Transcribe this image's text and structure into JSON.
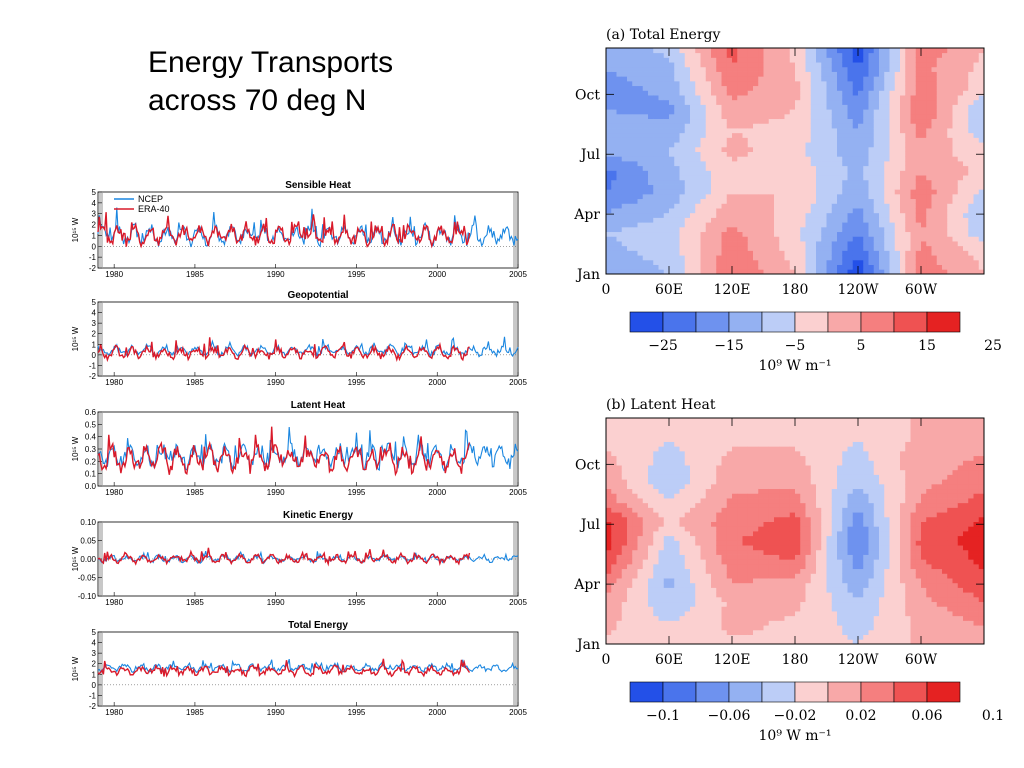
{
  "slide": {
    "title_line1": "Energy Transports",
    "title_line2": "across 70 deg N"
  },
  "colors": {
    "ncep": "#1a86e0",
    "era40": "#d91a2a",
    "neg_scale": [
      "#2350e8",
      "#4a74ec",
      "#6e92ef",
      "#94b1f2",
      "#bccdf7"
    ],
    "pos_scale": [
      "#fbd0d0",
      "#f8a8a8",
      "#f57f7f",
      "#ef5252",
      "#e52222"
    ]
  },
  "chart_data": [
    {
      "type": "line",
      "title": "Sensible Heat",
      "ylabel": "10¹⁵ W",
      "ylim": [
        -2,
        5
      ],
      "yticks": [
        "-2",
        "-1",
        "0",
        "1",
        "2",
        "3",
        "4",
        "5"
      ],
      "xticks": [
        "1980",
        "1985",
        "1990",
        "1995",
        "2000",
        "2005"
      ],
      "xlim": [
        1979,
        2005
      ],
      "legend": [
        "NCEP",
        "ERA-40"
      ],
      "series": [
        {
          "name": "NCEP",
          "mean": 1.0,
          "amp": 1.1,
          "start": 1979,
          "end": 2005
        },
        {
          "name": "ERA-40",
          "mean": 1.0,
          "amp": 1.1,
          "start": 1979,
          "end": 2002
        }
      ]
    },
    {
      "type": "line",
      "title": "Geopotential",
      "ylabel": "10¹⁵ W",
      "ylim": [
        -2,
        5
      ],
      "yticks": [
        "-2",
        "-1",
        "0",
        "1",
        "2",
        "3",
        "4",
        "5"
      ],
      "xticks": [
        "1980",
        "1985",
        "1990",
        "1995",
        "2000",
        "2005"
      ],
      "xlim": [
        1979,
        2005
      ],
      "series": [
        {
          "name": "NCEP",
          "mean": 0.4,
          "amp": 0.6,
          "start": 1979,
          "end": 2005
        },
        {
          "name": "ERA-40",
          "mean": 0.2,
          "amp": 0.7,
          "start": 1979,
          "end": 2002
        }
      ]
    },
    {
      "type": "line",
      "title": "Latent Heat",
      "ylabel": "10¹⁵ W",
      "ylim": [
        0.0,
        0.6
      ],
      "yticks": [
        "0.0",
        "0.1",
        "0.2",
        "0.3",
        "0.4",
        "0.5",
        "0.6"
      ],
      "xticks": [
        "1980",
        "1985",
        "1990",
        "1995",
        "2000",
        "2005"
      ],
      "xlim": [
        1979,
        2005
      ],
      "series": [
        {
          "name": "NCEP",
          "mean": 0.24,
          "amp": 0.12,
          "start": 1979,
          "end": 2005
        },
        {
          "name": "ERA-40",
          "mean": 0.22,
          "amp": 0.13,
          "start": 1979,
          "end": 2002
        }
      ]
    },
    {
      "type": "line",
      "title": "Kinetic Energy",
      "ylabel": "10¹⁵ W",
      "ylim": [
        -0.1,
        0.1
      ],
      "yticks": [
        "-0.10",
        "-0.05",
        "0.00",
        "0.05",
        "0.10"
      ],
      "xticks": [
        "1980",
        "1985",
        "1990",
        "1995",
        "2000",
        "2005"
      ],
      "xlim": [
        1979,
        2005
      ],
      "series": [
        {
          "name": "NCEP",
          "mean": 0.0,
          "amp": 0.012,
          "start": 1979,
          "end": 2005
        },
        {
          "name": "ERA-40",
          "mean": 0.0,
          "amp": 0.014,
          "start": 1979,
          "end": 2002
        }
      ]
    },
    {
      "type": "line",
      "title": "Total Energy",
      "ylabel": "10¹⁵ W",
      "ylim": [
        -2,
        5
      ],
      "yticks": [
        "-2",
        "-1",
        "0",
        "1",
        "2",
        "3",
        "4",
        "5"
      ],
      "xticks": [
        "1980",
        "1985",
        "1990",
        "1995",
        "2000",
        "2005"
      ],
      "xlim": [
        1979,
        2005
      ],
      "series": [
        {
          "name": "NCEP",
          "mean": 1.6,
          "amp": 0.45,
          "start": 1979,
          "end": 2005
        },
        {
          "name": "ERA-40",
          "mean": 1.3,
          "amp": 0.55,
          "start": 1979,
          "end": 2002
        }
      ]
    },
    {
      "type": "heatmap",
      "title": "(a) Total Energy",
      "yticks": [
        "Jan",
        "Apr",
        "Jul",
        "Oct"
      ],
      "xticks": [
        "0",
        "60E",
        "120E",
        "180",
        "120W",
        "60W"
      ],
      "colorbar_ticks": [
        "−25",
        "−15",
        "−5",
        "5",
        "15",
        "25"
      ],
      "colorbar_label": "10⁹ W m⁻¹",
      "columns": [
        {
          "lon": 0,
          "values": [
            -10,
            -8,
            -6,
            -12,
            -18,
            -20,
            -10,
            -8,
            -12,
            -15,
            -12,
            -10
          ]
        },
        {
          "lon": 60,
          "values": [
            -6,
            -4,
            -2,
            -6,
            -10,
            -8,
            -6,
            -10,
            -14,
            -10,
            -8,
            -4
          ]
        },
        {
          "lon": 120,
          "values": [
            18,
            16,
            14,
            10,
            6,
            4,
            8,
            6,
            10,
            14,
            18,
            20
          ]
        },
        {
          "lon": 180,
          "values": [
            6,
            4,
            2,
            4,
            6,
            4,
            2,
            4,
            6,
            8,
            6,
            4
          ]
        },
        {
          "lon": 240,
          "values": [
            -30,
            -24,
            -18,
            -14,
            -10,
            -8,
            -10,
            -12,
            -16,
            -20,
            -24,
            -28
          ]
        },
        {
          "lon": 300,
          "values": [
            16,
            14,
            12,
            14,
            16,
            12,
            10,
            14,
            18,
            16,
            14,
            16
          ]
        },
        {
          "lon": 360,
          "values": [
            6,
            4,
            -4,
            -6,
            -2,
            4,
            2,
            -4,
            -6,
            2,
            4,
            6
          ]
        }
      ]
    },
    {
      "type": "heatmap",
      "title": "(b) Latent Heat",
      "yticks": [
        "Jan",
        "Apr",
        "Jul",
        "Oct"
      ],
      "xticks": [
        "0",
        "60E",
        "120E",
        "180",
        "120W",
        "60W"
      ],
      "colorbar_ticks": [
        "−0.1",
        "−0.06",
        "−0.02",
        "0.02",
        "0.06",
        "0.1"
      ],
      "colorbar_label": "10⁹ W m⁻¹",
      "columns": [
        {
          "lon": 0,
          "values": [
            0.02,
            0.03,
            0.04,
            0.06,
            0.09,
            0.11,
            0.1,
            0.06,
            0.04,
            0.03,
            0.02,
            0.02
          ]
        },
        {
          "lon": 60,
          "values": [
            0.01,
            0.0,
            -0.02,
            -0.03,
            -0.02,
            -0.01,
            0.02,
            0.0,
            -0.02,
            -0.01,
            0.0,
            0.01
          ]
        },
        {
          "lon": 120,
          "values": [
            0.02,
            0.03,
            0.03,
            0.05,
            0.06,
            0.07,
            0.06,
            0.05,
            0.04,
            0.03,
            0.02,
            0.02
          ]
        },
        {
          "lon": 180,
          "values": [
            0.02,
            0.02,
            0.03,
            0.04,
            0.07,
            0.09,
            0.08,
            0.06,
            0.04,
            0.03,
            0.02,
            0.02
          ]
        },
        {
          "lon": 240,
          "values": [
            0.0,
            -0.01,
            -0.02,
            -0.04,
            -0.06,
            -0.08,
            -0.06,
            -0.04,
            -0.02,
            -0.01,
            0.0,
            0.0
          ]
        },
        {
          "lon": 300,
          "values": [
            0.03,
            0.03,
            0.04,
            0.05,
            0.07,
            0.08,
            0.07,
            0.05,
            0.04,
            0.04,
            0.03,
            0.03
          ]
        },
        {
          "lon": 360,
          "values": [
            0.04,
            0.05,
            0.07,
            0.09,
            0.1,
            0.11,
            0.1,
            0.08,
            0.06,
            0.05,
            0.04,
            0.04
          ]
        }
      ]
    }
  ]
}
